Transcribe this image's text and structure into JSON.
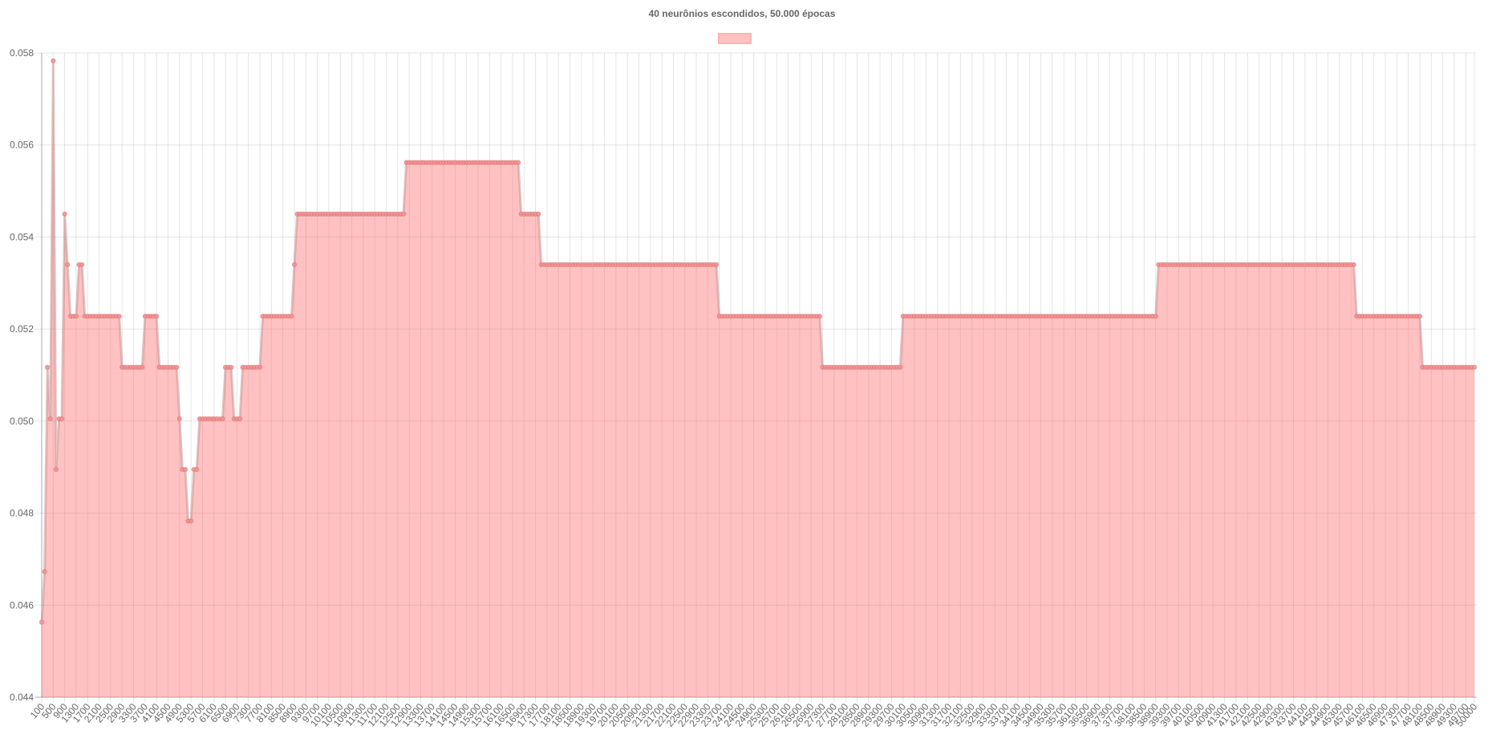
{
  "chart_data": {
    "type": "area",
    "title": "40 neurônios escondidos, 50.000 épocas",
    "xlabel": "",
    "ylabel": "",
    "ylim": [
      0.044,
      0.058
    ],
    "y_ticks": [
      0.044,
      0.046,
      0.048,
      0.05,
      0.052,
      0.054,
      0.056,
      0.058
    ],
    "x_tick_step": 400,
    "grid": true,
    "legend_position": "top-center",
    "series": [
      {
        "name": "",
        "color": "#ff6384",
        "fill": "rgba(255,99,99,0.4)",
        "segments": [
          {
            "x_from": 100,
            "x_to": 100,
            "y": 0.04563
          },
          {
            "x_from": 200,
            "x_to": 200,
            "y": 0.04673
          },
          {
            "x_from": 300,
            "x_to": 300,
            "y": 0.05117
          },
          {
            "x_from": 400,
            "x_to": 400,
            "y": 0.05005
          },
          {
            "x_from": 500,
            "x_to": 500,
            "y": 0.05783
          },
          {
            "x_from": 600,
            "x_to": 600,
            "y": 0.04895
          },
          {
            "x_from": 700,
            "x_to": 800,
            "y": 0.05005
          },
          {
            "x_from": 900,
            "x_to": 900,
            "y": 0.0545
          },
          {
            "x_from": 1000,
            "x_to": 1000,
            "y": 0.0534
          },
          {
            "x_from": 1100,
            "x_to": 1300,
            "y": 0.05228
          },
          {
            "x_from": 1400,
            "x_to": 1500,
            "y": 0.0534
          },
          {
            "x_from": 1600,
            "x_to": 2800,
            "y": 0.05228
          },
          {
            "x_from": 2900,
            "x_to": 3600,
            "y": 0.05117
          },
          {
            "x_from": 3700,
            "x_to": 4100,
            "y": 0.05228
          },
          {
            "x_from": 4200,
            "x_to": 4800,
            "y": 0.05117
          },
          {
            "x_from": 4900,
            "x_to": 4900,
            "y": 0.05005
          },
          {
            "x_from": 5000,
            "x_to": 5100,
            "y": 0.04895
          },
          {
            "x_from": 5200,
            "x_to": 5300,
            "y": 0.04783
          },
          {
            "x_from": 5400,
            "x_to": 5500,
            "y": 0.04895
          },
          {
            "x_from": 5600,
            "x_to": 6400,
            "y": 0.05005
          },
          {
            "x_from": 6500,
            "x_to": 6700,
            "y": 0.05117
          },
          {
            "x_from": 6800,
            "x_to": 7000,
            "y": 0.05005
          },
          {
            "x_from": 7100,
            "x_to": 7700,
            "y": 0.05117
          },
          {
            "x_from": 7800,
            "x_to": 8800,
            "y": 0.05228
          },
          {
            "x_from": 8900,
            "x_to": 8900,
            "y": 0.0534
          },
          {
            "x_from": 9000,
            "x_to": 12700,
            "y": 0.0545
          },
          {
            "x_from": 12800,
            "x_to": 16700,
            "y": 0.05562
          },
          {
            "x_from": 16800,
            "x_to": 17400,
            "y": 0.0545
          },
          {
            "x_from": 17500,
            "x_to": 23600,
            "y": 0.0534
          },
          {
            "x_from": 23700,
            "x_to": 27200,
            "y": 0.05228
          },
          {
            "x_from": 27300,
            "x_to": 30000,
            "y": 0.05117
          },
          {
            "x_from": 30100,
            "x_to": 38900,
            "y": 0.05228
          },
          {
            "x_from": 39000,
            "x_to": 45800,
            "y": 0.0534
          },
          {
            "x_from": 45900,
            "x_to": 48100,
            "y": 0.05228
          },
          {
            "x_from": 48200,
            "x_to": 50000,
            "y": 0.05117
          }
        ]
      }
    ]
  }
}
